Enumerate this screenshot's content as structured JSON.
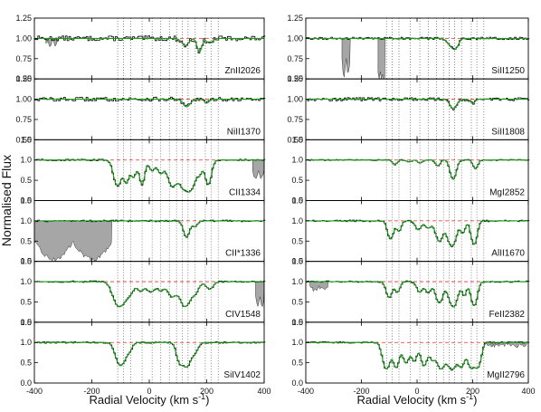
{
  "figure": {
    "ylabel": "Normalised Flux",
    "xlabel": "Radial Velocity (km s",
    "xlabel_sup": "-1",
    "xlabel_close": ")",
    "colors": {
      "model": "#1a9e1a",
      "continuum": "#e03030",
      "spectrum": "#000000",
      "blend_fill": "#a6a6a6",
      "marker": "#555555"
    }
  },
  "chart_data": {
    "type": "line",
    "xlim": [
      -400,
      400
    ],
    "x_ticks": [
      -400,
      -200,
      0,
      200,
      400
    ],
    "x_tick_labels": [
      "-400",
      "-200",
      "0",
      "200",
      "400"
    ],
    "component_velocities": [
      -110,
      -90,
      -65,
      -25,
      10,
      40,
      70,
      95,
      115,
      135,
      160,
      195,
      215,
      240
    ],
    "panels": [
      {
        "column": "left",
        "label": "ZnII2026",
        "ylim": [
          0.5,
          1.25
        ],
        "yticks": [
          "1.25",
          "1.00",
          "0.75",
          "0.50"
        ],
        "noise": 0.03,
        "absorption": [
          [
            125,
            0.09,
            12
          ],
          [
            175,
            0.18,
            8
          ],
          [
            210,
            0.06,
            10
          ]
        ],
        "blend": [
          [
            -360,
            -315,
            0.06
          ]
        ]
      },
      {
        "column": "left",
        "label": "NiII1370",
        "ylim": [
          0.5,
          1.25
        ],
        "yticks": [
          "1.25",
          "1.00",
          "0.75",
          "0.50"
        ],
        "noise": 0.025,
        "absorption": [
          [
            130,
            0.1,
            12
          ],
          [
            200,
            0.05,
            8
          ]
        ],
        "blend": []
      },
      {
        "column": "left",
        "label": "CII1334",
        "ylim": [
          0,
          1.5
        ],
        "yticks": [
          "1.5",
          "1.0",
          "0.5",
          "0.0"
        ],
        "noise": 0.02,
        "absorption": [
          [
            -110,
            1.0,
            12
          ],
          [
            -80,
            0.8,
            8
          ],
          [
            -55,
            0.55,
            10
          ],
          [
            -25,
            0.9,
            8
          ],
          [
            10,
            0.3,
            10
          ],
          [
            40,
            0.4,
            10
          ],
          [
            80,
            1.0,
            14
          ],
          [
            120,
            1.1,
            16
          ],
          [
            145,
            1.1,
            14
          ],
          [
            175,
            0.4,
            8
          ],
          [
            205,
            0.9,
            10
          ]
        ],
        "blend": [
          [
            360,
            400,
            0.45
          ]
        ]
      },
      {
        "column": "left",
        "label": "CII*1336",
        "ylim": [
          0,
          1.5
        ],
        "yticks": [
          "1.5",
          "1.0",
          "0.5",
          "0.0"
        ],
        "noise": 0.02,
        "absorption": [
          [
            130,
            0.5,
            10
          ],
          [
            160,
            0.15,
            8
          ]
        ],
        "blend": [
          [
            -400,
            -130,
            0.95
          ]
        ]
      },
      {
        "column": "left",
        "label": "CIV1548",
        "ylim": [
          0,
          1.5
        ],
        "yticks": [
          "1.5",
          "1.0",
          "0.5",
          "0.0"
        ],
        "noise": 0.02,
        "absorption": [
          [
            -105,
            0.95,
            18
          ],
          [
            -70,
            0.35,
            14
          ],
          [
            -30,
            0.25,
            12
          ],
          [
            5,
            0.3,
            12
          ],
          [
            40,
            0.25,
            12
          ],
          [
            80,
            0.45,
            14
          ],
          [
            125,
            0.95,
            16
          ],
          [
            160,
            0.3,
            12
          ],
          [
            210,
            0.2,
            12
          ]
        ],
        "blend": [
          [
            370,
            400,
            0.6
          ]
        ]
      },
      {
        "column": "left",
        "label": "SiIV1402",
        "ylim": [
          0,
          1.5
        ],
        "yticks": [
          "1.5",
          "1.0",
          "0.5",
          "0.0"
        ],
        "noise": 0.02,
        "absorption": [
          [
            -100,
            0.85,
            15
          ],
          [
            -70,
            0.2,
            10
          ],
          [
            105,
            0.55,
            10
          ],
          [
            130,
            0.9,
            14
          ],
          [
            160,
            0.25,
            10
          ]
        ],
        "blend": []
      },
      {
        "column": "right",
        "label": "SiII1250",
        "ylim": [
          0.5,
          1.25
        ],
        "yticks": [
          "1.25",
          "1.00",
          "0.75",
          "0.50"
        ],
        "noise": 0.015,
        "absorption": [
          [
            125,
            0.1,
            14
          ],
          [
            140,
            0.08,
            10
          ]
        ],
        "blend": [
          [
            -270,
            -240,
            0.45
          ],
          [
            -140,
            -115,
            0.72
          ]
        ]
      },
      {
        "column": "right",
        "label": "SiII1808",
        "ylim": [
          0.5,
          1.25
        ],
        "yticks": [
          "1.25",
          "1.00",
          "0.75",
          "0.50"
        ],
        "noise": 0.02,
        "absorption": [
          [
            130,
            0.12,
            12
          ],
          [
            200,
            0.05,
            8
          ]
        ],
        "blend": []
      },
      {
        "column": "right",
        "label": "MgI2852",
        "ylim": [
          0,
          1.5
        ],
        "yticks": [
          "1.5",
          "1.0",
          "0.5",
          "0.0"
        ],
        "noise": 0.015,
        "absorption": [
          [
            -80,
            0.12,
            8
          ],
          [
            -30,
            0.05,
            8
          ],
          [
            10,
            0.08,
            8
          ],
          [
            75,
            0.15,
            8
          ],
          [
            130,
            0.65,
            10
          ],
          [
            210,
            0.25,
            8
          ]
        ],
        "blend": []
      },
      {
        "column": "right",
        "label": "AlII1670",
        "ylim": [
          0,
          1.5
        ],
        "yticks": [
          "1.5",
          "1.0",
          "0.5",
          "0.0"
        ],
        "noise": 0.02,
        "absorption": [
          [
            -95,
            0.6,
            10
          ],
          [
            -65,
            0.3,
            8
          ],
          [
            5,
            0.25,
            10
          ],
          [
            40,
            0.2,
            10
          ],
          [
            80,
            0.7,
            12
          ],
          [
            125,
            1.0,
            14
          ],
          [
            165,
            0.35,
            8
          ],
          [
            205,
            0.85,
            10
          ]
        ],
        "blend": []
      },
      {
        "column": "right",
        "label": "FeII2382",
        "ylim": [
          0,
          1.5
        ],
        "yticks": [
          "1.5",
          "1.0",
          "0.5",
          "0.0"
        ],
        "noise": 0.02,
        "absorption": [
          [
            -100,
            0.5,
            10
          ],
          [
            -70,
            0.3,
            8
          ],
          [
            10,
            0.3,
            10
          ],
          [
            40,
            0.3,
            10
          ],
          [
            80,
            0.75,
            12
          ],
          [
            130,
            0.98,
            14
          ],
          [
            170,
            0.4,
            8
          ],
          [
            205,
            0.9,
            10
          ]
        ],
        "blend": [
          [
            -385,
            -320,
            0.2
          ]
        ]
      },
      {
        "column": "right",
        "label": "MgII2796",
        "ylim": [
          0,
          1.5
        ],
        "yticks": [
          "1.5",
          "1.0",
          "0.5",
          "0.0"
        ],
        "noise": 0.02,
        "absorption": [
          [
            -110,
            1.05,
            12
          ],
          [
            -75,
            0.95,
            10
          ],
          [
            -40,
            0.7,
            10
          ],
          [
            -10,
            0.6,
            10
          ],
          [
            25,
            0.85,
            10
          ],
          [
            55,
            0.55,
            10
          ],
          [
            85,
            1.0,
            12
          ],
          [
            125,
            1.1,
            16
          ],
          [
            160,
            0.85,
            10
          ],
          [
            195,
            1.0,
            12
          ],
          [
            220,
            0.85,
            10
          ]
        ],
        "blend": [
          [
            250,
            400,
            0.08
          ]
        ]
      }
    ]
  }
}
